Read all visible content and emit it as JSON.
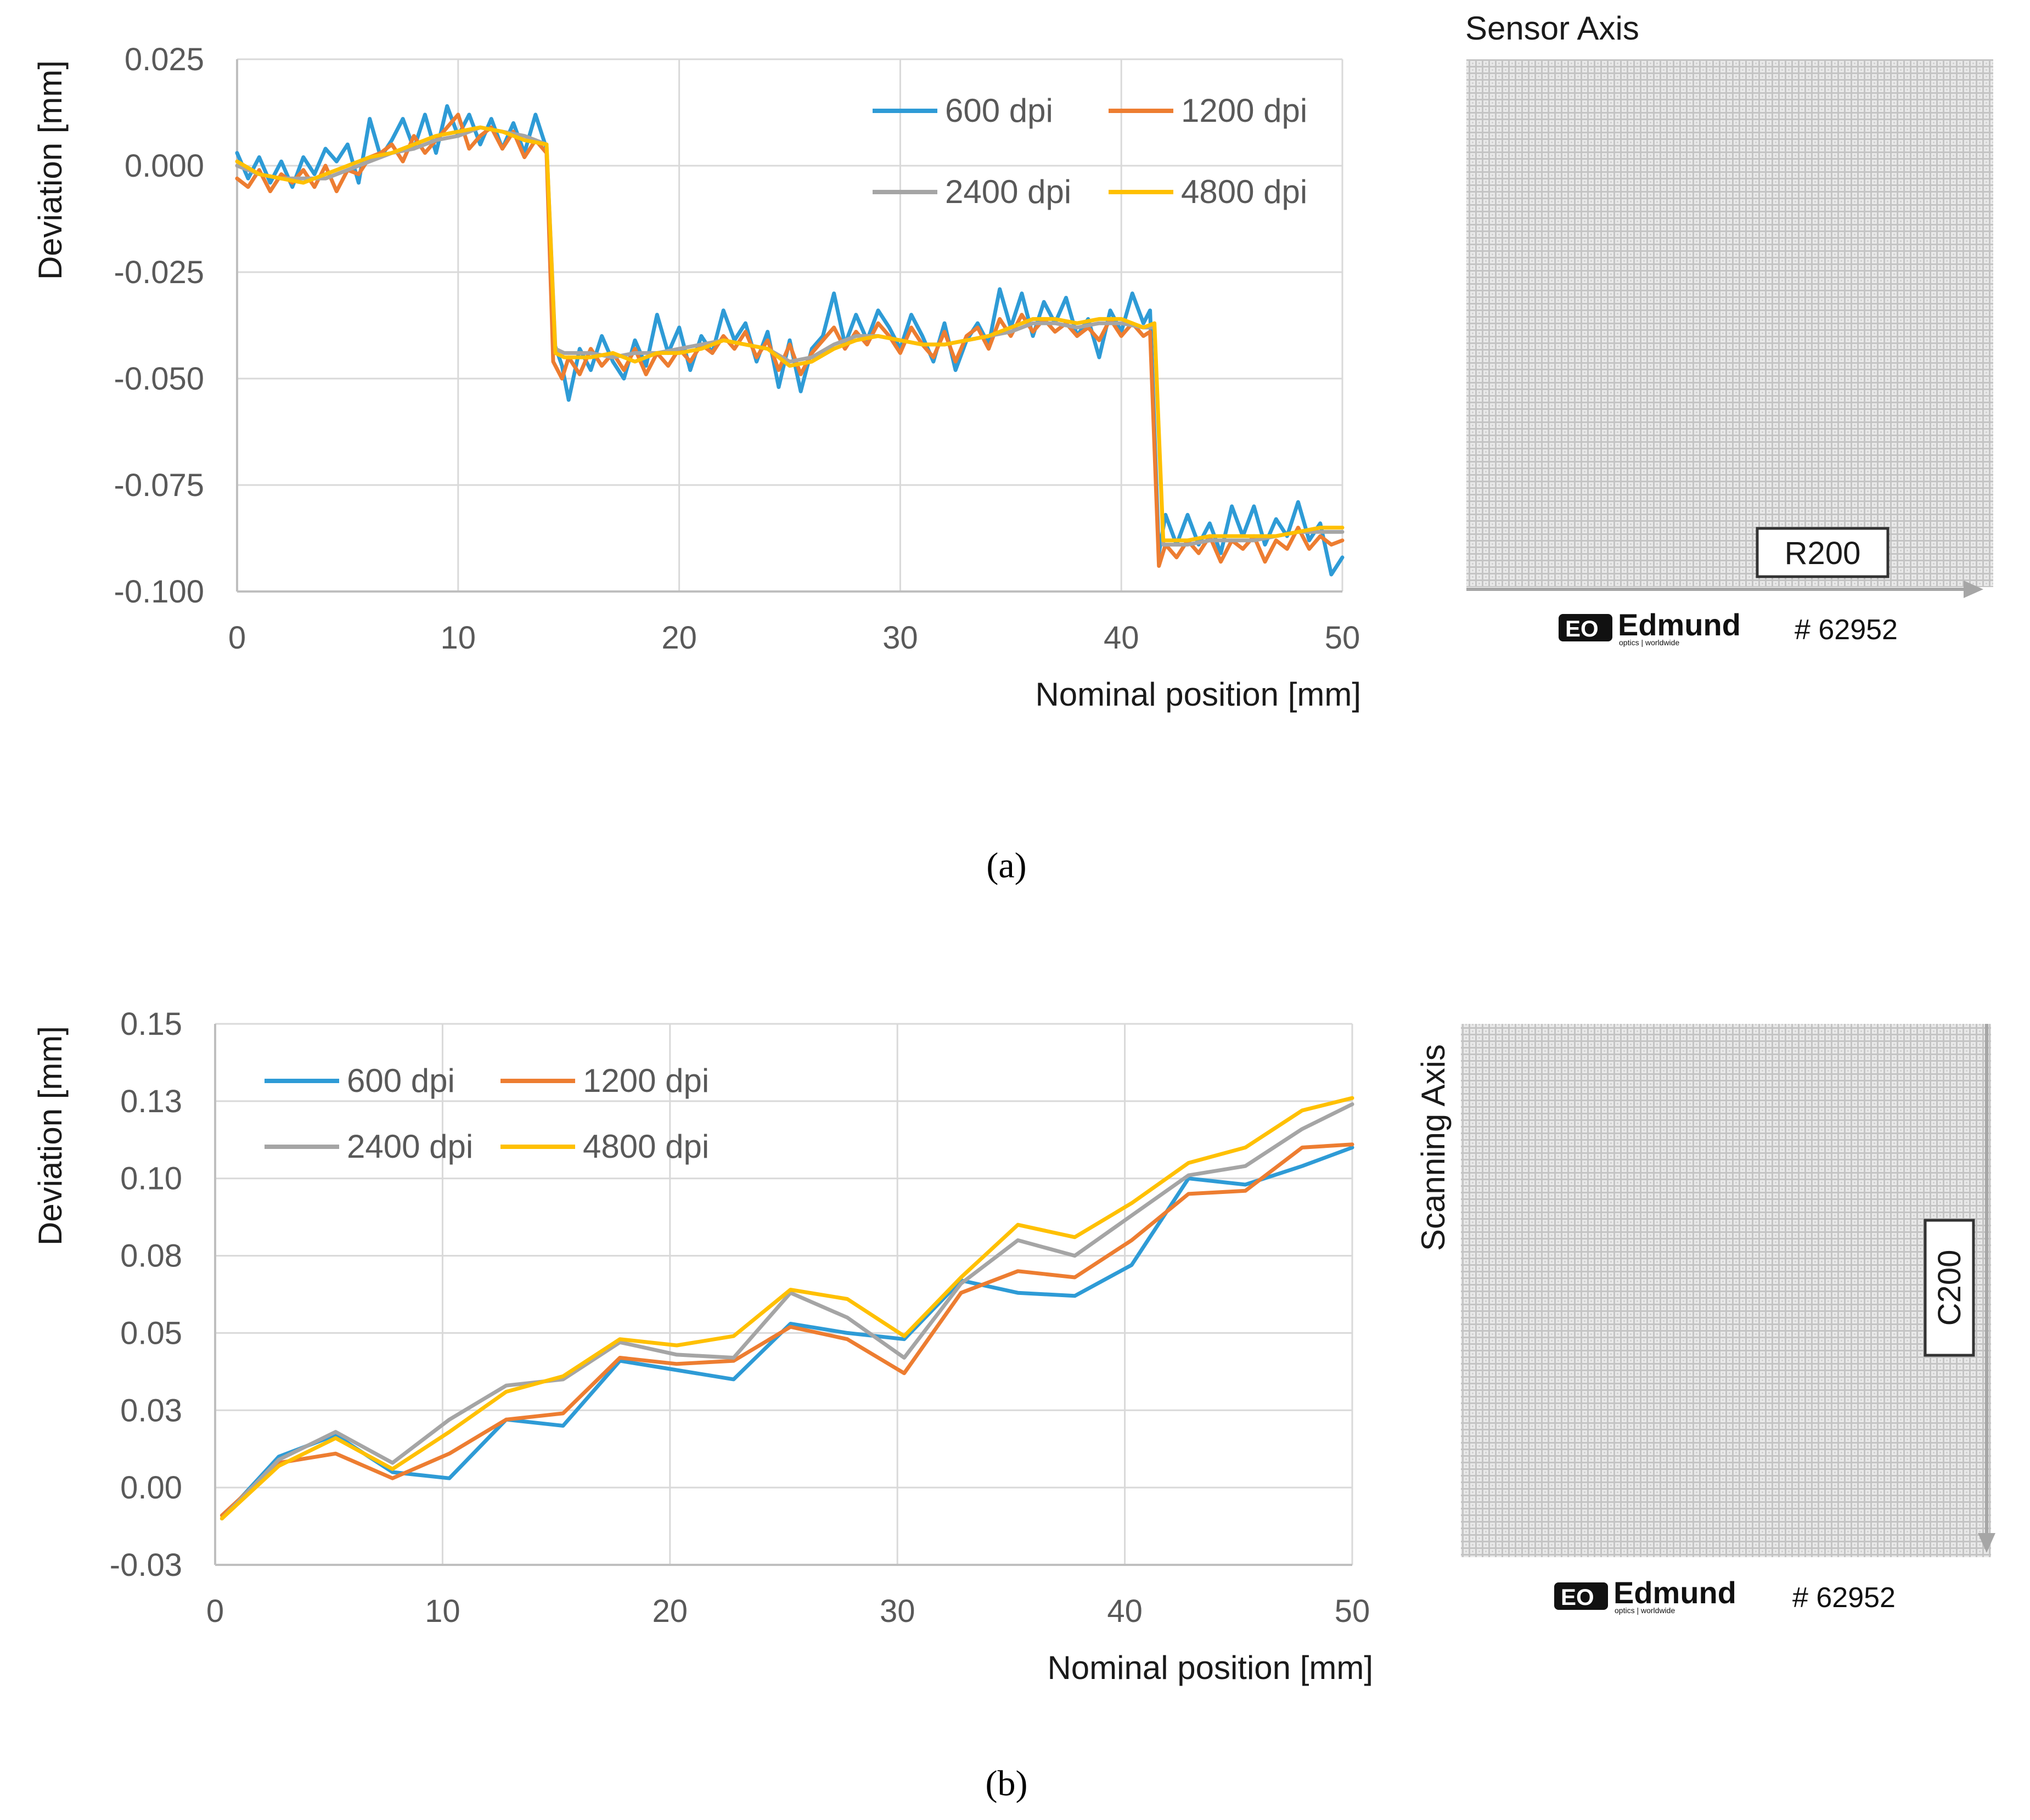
{
  "colors": {
    "600 dpi": "#2E9BD6",
    "1200 dpi": "#ED7D31",
    "2400 dpi": "#A5A5A5",
    "4800 dpi": "#FFC000",
    "grid": "#D9D9D9",
    "axis": "#BFBFBF"
  },
  "chart_data": [
    {
      "panel": "(a)",
      "type": "line",
      "xlabel": "Nominal position [mm]",
      "ylabel": "Deviation [mm]",
      "xlim": [
        0,
        50
      ],
      "ylim": [
        -0.1,
        0.025
      ],
      "xticks": [
        0,
        10,
        20,
        30,
        40,
        50
      ],
      "xtick_labels": [
        "0",
        "10",
        "20",
        "30",
        "40",
        "50"
      ],
      "yticks": [
        0.025,
        0,
        -0.025,
        -0.05,
        -0.075,
        -0.1
      ],
      "ytick_labels": [
        "0.025",
        "0.000",
        "-0.025",
        "-0.050",
        "-0.075",
        "-0.100"
      ],
      "grid": true,
      "legend_position": "top-right",
      "series": [
        {
          "name": "600 dpi",
          "x": [
            0,
            0.5,
            1,
            1.5,
            2,
            2.5,
            3,
            3.5,
            4,
            4.5,
            5,
            5.5,
            6,
            6.5,
            7,
            7.5,
            8,
            8.5,
            9,
            9.5,
            10,
            10.5,
            11,
            11.5,
            12,
            12.5,
            13,
            13.5,
            14,
            14.3,
            14.7,
            15,
            15.5,
            16,
            16.5,
            17,
            17.5,
            18,
            18.5,
            19,
            19.5,
            20,
            20.5,
            21,
            21.5,
            22,
            22.5,
            23,
            23.5,
            24,
            24.5,
            25,
            25.5,
            26,
            26.5,
            27,
            27.5,
            28,
            28.5,
            29,
            29.5,
            30,
            30.5,
            31,
            31.5,
            32,
            32.5,
            33,
            33.5,
            34,
            34.5,
            35,
            35.5,
            36,
            36.5,
            37,
            37.5,
            38,
            38.5,
            39,
            39.5,
            40,
            40.5,
            41,
            41.3,
            41.7,
            42,
            42.5,
            43,
            43.5,
            44,
            44.5,
            45,
            45.5,
            46,
            46.5,
            47,
            47.5,
            48,
            48.5,
            49,
            49.5,
            50
          ],
          "values": [
            0.003,
            -0.003,
            0.002,
            -0.004,
            0.001,
            -0.005,
            0.002,
            -0.002,
            0.004,
            0.001,
            0.005,
            -0.004,
            0.011,
            0.002,
            0.006,
            0.011,
            0.004,
            0.012,
            0.003,
            0.014,
            0.007,
            0.012,
            0.005,
            0.011,
            0.004,
            0.01,
            0.003,
            0.012,
            0.004,
            -0.041,
            -0.047,
            -0.055,
            -0.043,
            -0.048,
            -0.04,
            -0.046,
            -0.05,
            -0.041,
            -0.047,
            -0.035,
            -0.044,
            -0.038,
            -0.048,
            -0.04,
            -0.044,
            -0.034,
            -0.041,
            -0.037,
            -0.046,
            -0.039,
            -0.052,
            -0.041,
            -0.053,
            -0.043,
            -0.04,
            -0.03,
            -0.042,
            -0.035,
            -0.041,
            -0.034,
            -0.038,
            -0.043,
            -0.035,
            -0.04,
            -0.046,
            -0.037,
            -0.048,
            -0.041,
            -0.037,
            -0.042,
            -0.029,
            -0.038,
            -0.03,
            -0.04,
            -0.032,
            -0.037,
            -0.031,
            -0.04,
            -0.036,
            -0.045,
            -0.034,
            -0.039,
            -0.03,
            -0.037,
            -0.034,
            -0.091,
            -0.082,
            -0.089,
            -0.082,
            -0.089,
            -0.084,
            -0.091,
            -0.08,
            -0.087,
            -0.08,
            -0.089,
            -0.083,
            -0.087,
            -0.079,
            -0.088,
            -0.084,
            -0.096,
            -0.092
          ]
        },
        {
          "name": "1200 dpi",
          "x": [
            0,
            0.5,
            1,
            1.5,
            2,
            2.5,
            3,
            3.5,
            4,
            4.5,
            5,
            5.5,
            6,
            6.5,
            7,
            7.5,
            8,
            8.5,
            9,
            9.5,
            10,
            10.5,
            11,
            11.5,
            12,
            12.5,
            13,
            13.5,
            14,
            14.3,
            14.7,
            15,
            15.5,
            16,
            16.5,
            17,
            17.5,
            18,
            18.5,
            19,
            19.5,
            20,
            20.5,
            21,
            21.5,
            22,
            22.5,
            23,
            23.5,
            24,
            24.5,
            25,
            25.5,
            26,
            26.5,
            27,
            27.5,
            28,
            28.5,
            29,
            29.5,
            30,
            30.5,
            31,
            31.5,
            32,
            32.5,
            33,
            33.5,
            34,
            34.5,
            35,
            35.5,
            36,
            36.5,
            37,
            37.5,
            38,
            38.5,
            39,
            39.5,
            40,
            40.5,
            41,
            41.3,
            41.7,
            42,
            42.5,
            43,
            43.5,
            44,
            44.5,
            45,
            45.5,
            46,
            46.5,
            47,
            47.5,
            48,
            48.5,
            49,
            49.5,
            50
          ],
          "values": [
            -0.003,
            -0.005,
            -0.001,
            -0.006,
            -0.002,
            -0.004,
            -0.001,
            -0.005,
            0.0,
            -0.006,
            -0.001,
            -0.002,
            0.002,
            0.003,
            0.005,
            0.001,
            0.007,
            0.003,
            0.006,
            0.009,
            0.012,
            0.004,
            0.007,
            0.009,
            0.004,
            0.008,
            0.002,
            0.006,
            0.003,
            -0.046,
            -0.05,
            -0.045,
            -0.049,
            -0.043,
            -0.047,
            -0.044,
            -0.048,
            -0.043,
            -0.049,
            -0.044,
            -0.047,
            -0.043,
            -0.046,
            -0.042,
            -0.044,
            -0.04,
            -0.043,
            -0.039,
            -0.045,
            -0.041,
            -0.048,
            -0.042,
            -0.049,
            -0.044,
            -0.041,
            -0.038,
            -0.043,
            -0.039,
            -0.042,
            -0.037,
            -0.04,
            -0.044,
            -0.038,
            -0.042,
            -0.045,
            -0.039,
            -0.046,
            -0.04,
            -0.038,
            -0.043,
            -0.036,
            -0.04,
            -0.035,
            -0.039,
            -0.036,
            -0.039,
            -0.037,
            -0.04,
            -0.038,
            -0.041,
            -0.036,
            -0.04,
            -0.037,
            -0.04,
            -0.039,
            -0.094,
            -0.089,
            -0.092,
            -0.088,
            -0.091,
            -0.087,
            -0.093,
            -0.088,
            -0.09,
            -0.087,
            -0.093,
            -0.088,
            -0.09,
            -0.085,
            -0.09,
            -0.087,
            -0.089,
            -0.088
          ]
        },
        {
          "name": "2400 dpi",
          "x": [
            0,
            1,
            2,
            3,
            4,
            5,
            6,
            7,
            8,
            9,
            10,
            11,
            12,
            13,
            14,
            14.4,
            14.8,
            16,
            17,
            18,
            19,
            20,
            21,
            22,
            23,
            24,
            25,
            26,
            27,
            28,
            29,
            30,
            31,
            32,
            33,
            34,
            35,
            36,
            37,
            38,
            39,
            40,
            41,
            41.5,
            41.9,
            43,
            44,
            45,
            46,
            47,
            48,
            49,
            50
          ],
          "values": [
            0.0,
            -0.002,
            -0.003,
            -0.003,
            -0.003,
            -0.001,
            0.001,
            0.003,
            0.004,
            0.006,
            0.007,
            0.009,
            0.008,
            0.007,
            0.005,
            -0.043,
            -0.044,
            -0.044,
            -0.045,
            -0.044,
            -0.044,
            -0.043,
            -0.042,
            -0.041,
            -0.042,
            -0.043,
            -0.046,
            -0.045,
            -0.042,
            -0.04,
            -0.04,
            -0.041,
            -0.042,
            -0.042,
            -0.041,
            -0.04,
            -0.039,
            -0.037,
            -0.037,
            -0.038,
            -0.037,
            -0.037,
            -0.038,
            -0.038,
            -0.089,
            -0.089,
            -0.088,
            -0.088,
            -0.088,
            -0.087,
            -0.086,
            -0.086,
            -0.086
          ]
        },
        {
          "name": "4800 dpi",
          "x": [
            0,
            1,
            2,
            3,
            4,
            5,
            6,
            7,
            8,
            9,
            10,
            11,
            12,
            13,
            14,
            14.4,
            14.8,
            16,
            17,
            18,
            19,
            20,
            21,
            22,
            23,
            24,
            25,
            26,
            27,
            28,
            29,
            30,
            31,
            32,
            33,
            34,
            35,
            36,
            37,
            38,
            39,
            40,
            41,
            41.5,
            41.9,
            43,
            44,
            45,
            46,
            47,
            48,
            49,
            50
          ],
          "values": [
            0.001,
            -0.002,
            -0.003,
            -0.004,
            -0.002,
            0.0,
            0.002,
            0.003,
            0.005,
            0.007,
            0.008,
            0.009,
            0.008,
            0.006,
            0.005,
            -0.044,
            -0.045,
            -0.045,
            -0.044,
            -0.046,
            -0.044,
            -0.044,
            -0.043,
            -0.041,
            -0.042,
            -0.043,
            -0.047,
            -0.046,
            -0.043,
            -0.041,
            -0.04,
            -0.041,
            -0.042,
            -0.042,
            -0.041,
            -0.04,
            -0.038,
            -0.036,
            -0.036,
            -0.037,
            -0.036,
            -0.036,
            -0.038,
            -0.037,
            -0.088,
            -0.088,
            -0.087,
            -0.087,
            -0.087,
            -0.087,
            -0.086,
            -0.085,
            -0.085
          ]
        }
      ]
    },
    {
      "panel": "(b)",
      "type": "line",
      "xlabel": "Nominal position [mm]",
      "ylabel": "Deviation [mm]",
      "xlim": [
        0,
        50
      ],
      "ylim": [
        -0.025,
        0.15
      ],
      "xticks": [
        0,
        10,
        20,
        30,
        40,
        50
      ],
      "xtick_labels": [
        "0",
        "10",
        "20",
        "30",
        "40",
        "50"
      ],
      "yticks": [
        0.15,
        0.125,
        0.1,
        0.075,
        0.05,
        0.025,
        0,
        -0.025
      ],
      "ytick_labels": [
        "0.15",
        "0.13",
        "0.10",
        "0.08",
        "0.05",
        "0.03",
        "0.00",
        "-0.03"
      ],
      "grid": true,
      "legend_position": "top-left",
      "series": [
        {
          "name": "600 dpi",
          "x": [
            0.3,
            2.8,
            5.3,
            7.8,
            10.3,
            12.8,
            15.3,
            17.8,
            20.3,
            22.8,
            25.3,
            27.8,
            30.3,
            32.8,
            35.3,
            37.8,
            40.3,
            42.8,
            45.3,
            47.8,
            50
          ],
          "values": [
            -0.01,
            0.01,
            0.017,
            0.005,
            0.003,
            0.022,
            0.02,
            0.041,
            0.038,
            0.035,
            0.053,
            0.05,
            0.048,
            0.067,
            0.063,
            0.062,
            0.072,
            0.1,
            0.098,
            0.104,
            0.11
          ]
        },
        {
          "name": "1200 dpi",
          "x": [
            0.3,
            2.8,
            5.3,
            7.8,
            10.3,
            12.8,
            15.3,
            17.8,
            20.3,
            22.8,
            25.3,
            27.8,
            30.3,
            32.8,
            35.3,
            37.8,
            40.3,
            42.8,
            45.3,
            47.8,
            50
          ],
          "values": [
            -0.009,
            0.008,
            0.011,
            0.003,
            0.011,
            0.022,
            0.024,
            0.042,
            0.04,
            0.041,
            0.052,
            0.048,
            0.037,
            0.063,
            0.07,
            0.068,
            0.08,
            0.095,
            0.096,
            0.11,
            0.111
          ]
        },
        {
          "name": "2400 dpi",
          "x": [
            0.3,
            2.8,
            5.3,
            7.8,
            10.3,
            12.8,
            15.3,
            17.8,
            20.3,
            22.8,
            25.3,
            27.8,
            30.3,
            32.8,
            35.3,
            37.8,
            40.3,
            42.8,
            45.3,
            47.8,
            50
          ],
          "values": [
            -0.01,
            0.009,
            0.018,
            0.008,
            0.022,
            0.033,
            0.035,
            0.047,
            0.043,
            0.042,
            0.063,
            0.055,
            0.042,
            0.066,
            0.08,
            0.075,
            0.088,
            0.101,
            0.104,
            0.116,
            0.124
          ]
        },
        {
          "name": "4800 dpi",
          "x": [
            0.3,
            2.8,
            5.3,
            7.8,
            10.3,
            12.8,
            15.3,
            17.8,
            20.3,
            22.8,
            25.3,
            27.8,
            30.3,
            32.8,
            35.3,
            37.8,
            40.3,
            42.8,
            45.3,
            47.8,
            50
          ],
          "values": [
            -0.01,
            0.007,
            0.016,
            0.006,
            0.018,
            0.031,
            0.036,
            0.048,
            0.046,
            0.049,
            0.064,
            0.061,
            0.049,
            0.068,
            0.085,
            0.081,
            0.092,
            0.105,
            0.11,
            0.122,
            0.126
          ]
        }
      ]
    }
  ],
  "labels": {
    "panel_a": "(a)",
    "panel_b": "(b)"
  },
  "targets": {
    "a": {
      "title": "Sensor Axis",
      "box_label": "R200",
      "brand": "Edmund",
      "brand_sub": "optics | worldwide",
      "part": "# 62952"
    },
    "b": {
      "title": "Scanning Axis",
      "box_label": "C200",
      "brand": "Edmund",
      "brand_sub": "optics | worldwide",
      "part": "# 62952"
    }
  }
}
